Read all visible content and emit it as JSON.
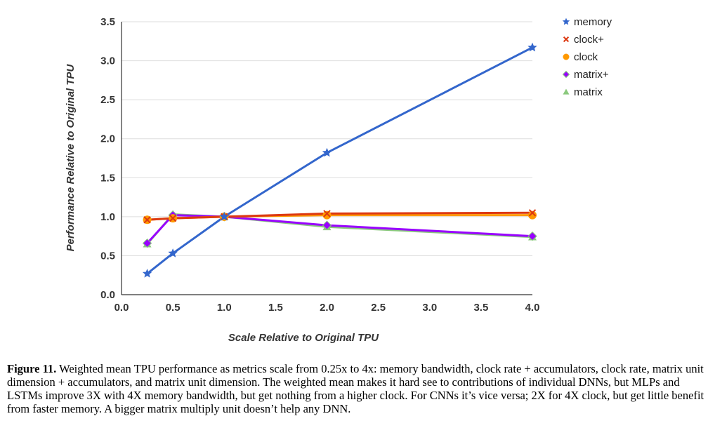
{
  "chart_data": {
    "type": "line",
    "xlabel": "Scale Relative to Original TPU",
    "ylabel": "Performance Relative to Original TPU",
    "xlim": [
      0,
      4
    ],
    "ylim": [
      0,
      3.5
    ],
    "x_ticks": [
      "0.0",
      "0.5",
      "1.0",
      "1.5",
      "2.0",
      "2.5",
      "3.0",
      "3.5",
      "4.0"
    ],
    "y_ticks": [
      "0.0",
      "0.5",
      "1.0",
      "1.5",
      "2.0",
      "2.5",
      "3.0",
      "3.5"
    ],
    "x": [
      0.25,
      0.5,
      1.0,
      2.0,
      4.0
    ],
    "grid": "horizontal",
    "legend_position": "right",
    "series": [
      {
        "name": "memory",
        "color": "#3366cc",
        "marker": "star",
        "values": [
          0.27,
          0.53,
          1.0,
          1.82,
          3.17
        ]
      },
      {
        "name": "clock+",
        "color": "#dc3912",
        "marker": "x",
        "values": [
          0.96,
          0.98,
          1.0,
          1.04,
          1.05
        ]
      },
      {
        "name": "clock",
        "color": "#ff9900",
        "marker": "circle",
        "values": [
          0.96,
          0.98,
          1.0,
          1.02,
          1.02
        ]
      },
      {
        "name": "matrix+",
        "color": "#9900ff",
        "marker": "diamond",
        "values": [
          0.66,
          1.02,
          1.0,
          0.89,
          0.75
        ]
      },
      {
        "name": "matrix",
        "color": "#8bc97e",
        "marker": "triangle",
        "values": [
          0.65,
          1.03,
          1.0,
          0.87,
          0.74
        ]
      }
    ]
  },
  "caption": {
    "figure_label": "Figure 11.",
    "text": " Weighted mean TPU performance as metrics scale from 0.25x to 4x: memory bandwidth, clock rate + accumulators, clock rate, matrix unit dimension + accumulators, and matrix unit dimension. The weighted mean makes it hard see to contributions of individual DNNs, but  MLPs and LSTMs improve 3X with 4X memory bandwidth, but get nothing from a higher clock. For CNNs it’s vice versa; 2X for 4X clock, but get little benefit from faster memory. A bigger matrix multiply unit doesn’t help any DNN."
  }
}
